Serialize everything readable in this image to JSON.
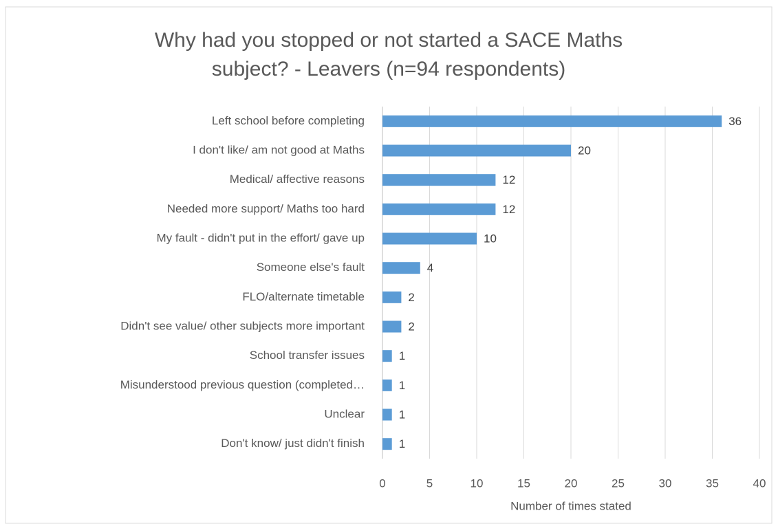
{
  "chart_data": {
    "type": "bar",
    "orientation": "horizontal",
    "title": "Why had you stopped or not started a SACE Maths subject? - Leavers (n=94 respondents)",
    "x_label": "Number of times stated",
    "categories": [
      "Left school before completing",
      "I don't like/ am not good at Maths",
      "Medical/ affective reasons",
      "Needed more support/ Maths too hard",
      "My fault - didn't put in the effort/ gave up",
      "Someone else's fault",
      "FLO/alternate timetable",
      "Didn't see value/ other subjects more important",
      "School transfer issues",
      "Misunderstood previous question (completed…",
      "Unclear",
      "Don't know/ just didn't finish"
    ],
    "values": [
      36,
      20,
      12,
      12,
      10,
      4,
      2,
      2,
      1,
      1,
      1,
      1
    ],
    "color": "#5b9bd5",
    "xlim": [
      0,
      40
    ],
    "xticks": [
      0,
      5,
      10,
      15,
      20,
      25,
      30,
      35,
      40
    ],
    "grid": true
  }
}
